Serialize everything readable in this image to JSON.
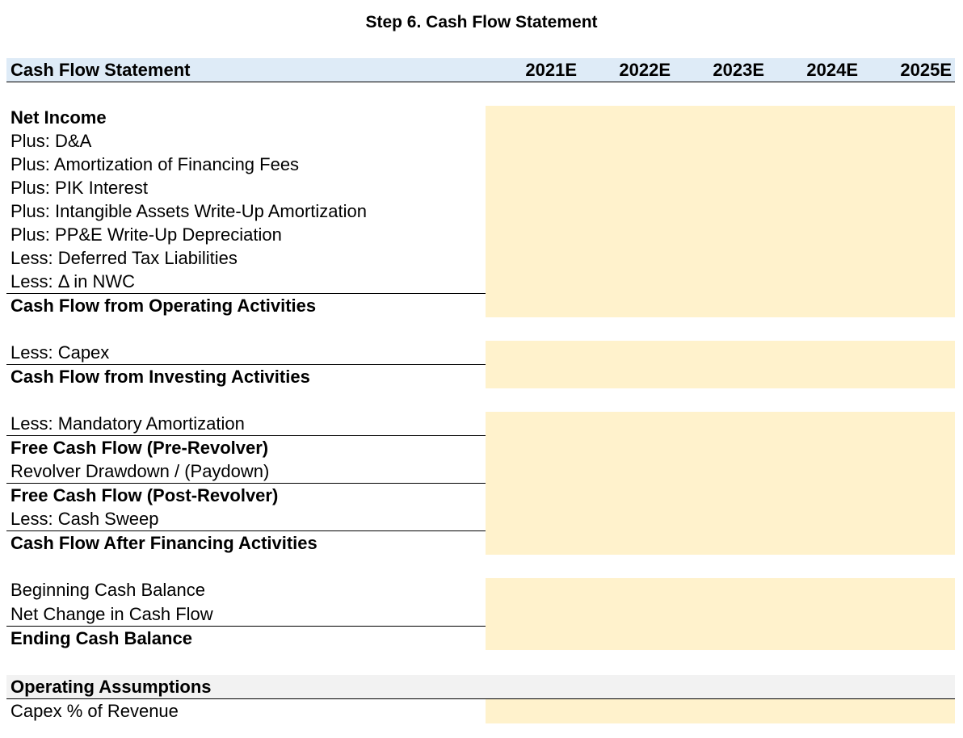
{
  "title": "Step 6. Cash Flow Statement",
  "header": {
    "label": "Cash Flow Statement",
    "years": [
      "2021E",
      "2022E",
      "2023E",
      "2024E",
      "2025E"
    ]
  },
  "rows": {
    "net_income": "Net Income",
    "plus_da": "Plus: D&A",
    "plus_amort_fin_fees": "Plus: Amortization of Financing Fees",
    "plus_pik": "Plus: PIK Interest",
    "plus_intangible": "Plus: Intangible Assets Write-Up Amortization",
    "plus_ppe": "Plus: PP&E Write-Up Depreciation",
    "less_dtl": "Less: Deferred Tax Liabilities",
    "less_nwc": "Less: Δ in NWC",
    "cfo": "Cash Flow from Operating Activities",
    "less_capex": "Less: Capex",
    "cfi": "Cash Flow from Investing Activities",
    "less_mand_amort": "Less: Mandatory Amortization",
    "fcf_pre": "Free Cash Flow (Pre-Revolver)",
    "revolver": "Revolver Drawdown / (Paydown)",
    "fcf_post": "Free Cash Flow (Post-Revolver)",
    "less_sweep": "Less: Cash Sweep",
    "cf_after_fin": "Cash Flow After Financing Activities",
    "beg_cash": "Beginning Cash Balance",
    "net_change": "Net Change in Cash Flow",
    "end_cash": "Ending Cash Balance"
  },
  "assumptions": {
    "label": "Operating Assumptions",
    "capex_pct": "Capex % of Revenue"
  },
  "colors": {
    "header_bg": "#deebf7",
    "input_fill": "#fff2cc",
    "section_bg": "#f2f2f2"
  }
}
